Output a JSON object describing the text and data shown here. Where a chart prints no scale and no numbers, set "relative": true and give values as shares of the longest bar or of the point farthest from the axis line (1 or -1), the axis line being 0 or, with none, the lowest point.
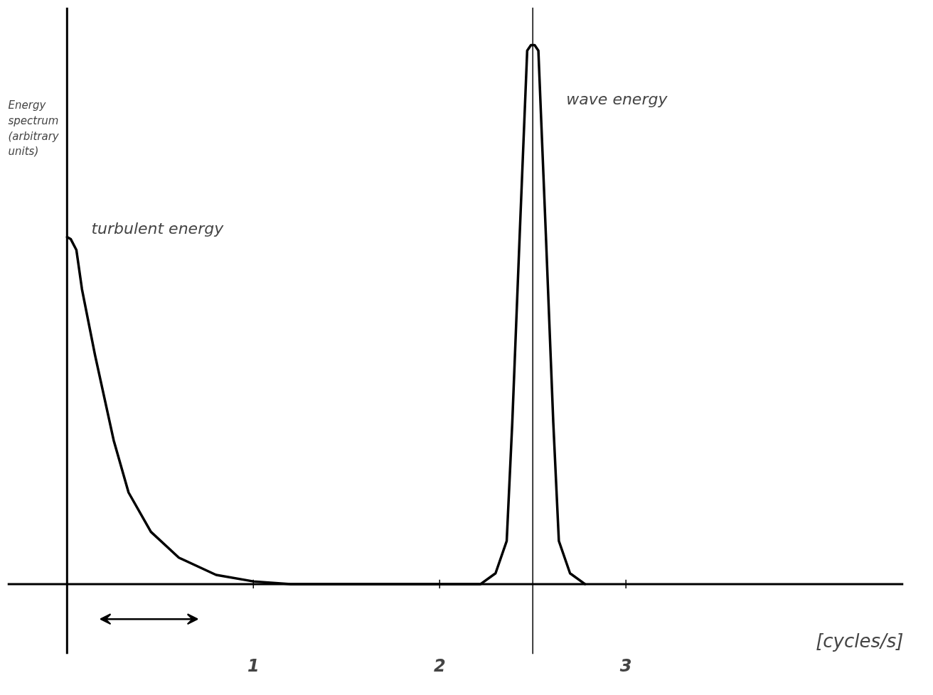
{
  "chart_data": {
    "type": "line",
    "relative": true,
    "xlabel": "[cycles/s]",
    "ylabel": "Energy spectrum (arbitrary units)",
    "xlim": [
      -0.32,
      4.49
    ],
    "xticks": [
      1,
      2,
      3
    ],
    "x": [
      0,
      0.02,
      0.05,
      0.08,
      0.15,
      0.25,
      0.33,
      0.45,
      0.6,
      0.8,
      1.0,
      1.2,
      2.22,
      2.3,
      2.36,
      2.39,
      2.43,
      2.47,
      2.49,
      2.51,
      2.53,
      2.57,
      2.61,
      2.64,
      2.7,
      2.78
    ],
    "series": [
      {
        "color": "#000000",
        "values": [
          0.644,
          0.64,
          0.62,
          0.547,
          0.425,
          0.267,
          0.17,
          0.097,
          0.049,
          0.017,
          0.005,
          0,
          0,
          0.02,
          0.08,
          0.3,
          0.65,
          0.99,
          1,
          1,
          0.99,
          0.65,
          0.3,
          0.08,
          0.02,
          0
        ]
      }
    ],
    "ref_lines": [
      {
        "axis": "x",
        "value": 2.5,
        "color": "#000000",
        "line_style": "solid"
      }
    ],
    "annotations": [
      "turbulent energy",
      "wave energy"
    ],
    "grid": false,
    "marker": "none",
    "line_style": "solid"
  }
}
